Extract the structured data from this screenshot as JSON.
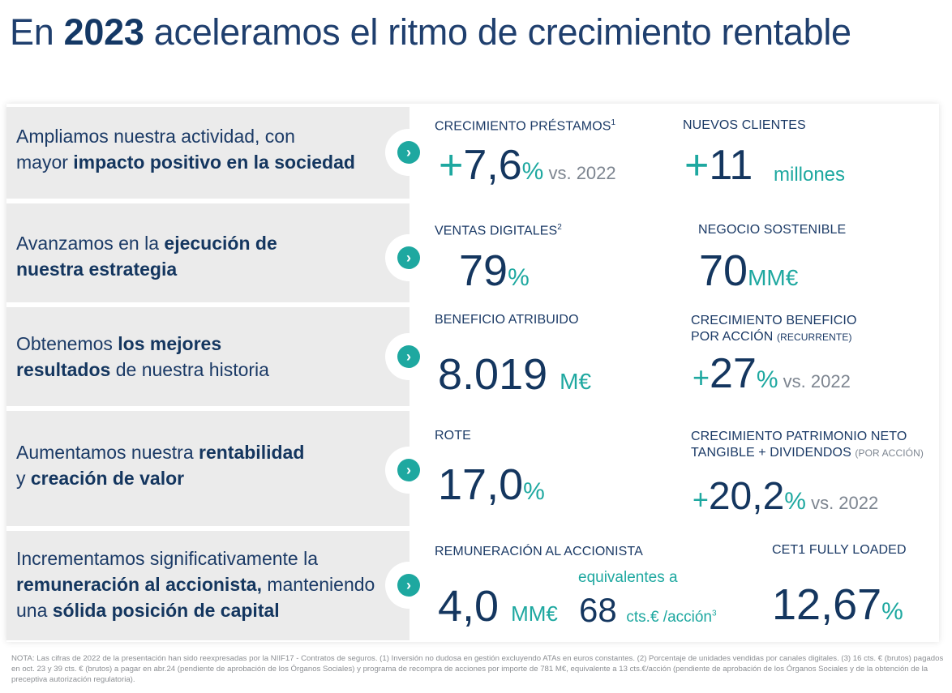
{
  "title": {
    "prefix": "En ",
    "year": "2023",
    "suffix": " aceleramos el ritmo de crecimiento rentable"
  },
  "rows": [
    {
      "line1a": "Ampliamos nuestra actividad, con",
      "line2a": "mayor ",
      "line2b": "impacto positivo en la sociedad"
    },
    {
      "line1a": "Avanzamos en la ",
      "line1b": "ejecución de",
      "line2b": "nuestra estrategia"
    },
    {
      "line1a": "Obtenemos ",
      "line1b": "los mejores",
      "line2b": "resultados",
      "line2c": " de nuestra historia"
    },
    {
      "line1a": "Aumentamos nuestra ",
      "line1b": "rentabilidad",
      "line2a": "y ",
      "line2b": "creación de valor"
    },
    {
      "line1a": "Incrementamos significativamente la",
      "line2b": "remuneración al accionista,",
      "line2c": " manteniendo",
      "line3a": "una ",
      "line3b": "sólida posición de capital"
    }
  ],
  "metrics": {
    "prestamos": {
      "label": "CRECIMIENTO PRÉSTAMOS",
      "sup": "1",
      "plus": "+",
      "value": "7,6",
      "unit": "%",
      "vs": " vs. 2022"
    },
    "clientes": {
      "label": "NUEVOS CLIENTES",
      "plus": "+",
      "value": "11",
      "unit": "millones"
    },
    "ventas": {
      "label": "VENTAS DIGITALES",
      "sup": "2",
      "value": "79",
      "unit": "%"
    },
    "sostenible": {
      "label": "NEGOCIO SOSTENIBLE",
      "value": "70",
      "unit": "MM€"
    },
    "beneficio": {
      "label": "BENEFICIO ATRIBUIDO",
      "value": "8.019",
      "unit": "M€"
    },
    "bpa": {
      "label1": "CRECIMIENTO BENEFICIO",
      "label2": "POR ACCIÓN ",
      "label2small": "(RECURRENTE)",
      "plus": "+",
      "value": "27",
      "unit": "%",
      "vs": " vs. 2022"
    },
    "rote": {
      "label": "ROTE",
      "value": "17,0",
      "unit": "%"
    },
    "tnav": {
      "label1": "CRECIMIENTO PATRIMONIO NETO",
      "label2": "TANGIBLE + DIVIDENDOS ",
      "label2small": "(POR ACCIÓN)",
      "plus": "+",
      "value": "20,2",
      "unit": "%",
      "vs": " vs. 2022"
    },
    "remuneracion": {
      "label": "REMUNERACIÓN AL ACCIONISTA",
      "value": "4,0",
      "unit": "MM€",
      "equiv": "equivalentes a",
      "value2": "68",
      "unit2": "cts.€ /acción",
      "sup": "3"
    },
    "cet1": {
      "label": "CET1 FULLY LOADED",
      "value": "12,67",
      "unit": "%"
    }
  },
  "arrow_icon": "chevron-right-icon",
  "colors": {
    "navy": "#14365f",
    "teal": "#1ea8a0",
    "grey_panel": "#ebebeb"
  },
  "note": "NOTA: Las cifras de 2022 de la presentación han sido reexpresadas por la NIIF17 - Contratos de seguros. (1) Inversión no dudosa en gestión excluyendo ATAs en euros constantes. (2) Porcentaje de unidades vendidas por canales digitales. (3) 16 cts. € (brutos) pagados en oct. 23 y 39 cts. € (brutos) a pagar en abr.24 (pendiente de aprobación de los Órganos Sociales) y programa de recompra de acciones por importe de 781 M€, equivalente a 13 cts.€/acción (pendiente de aprobación de los Órganos Sociales y de la obtención de la preceptiva autorización regulatoria)."
}
